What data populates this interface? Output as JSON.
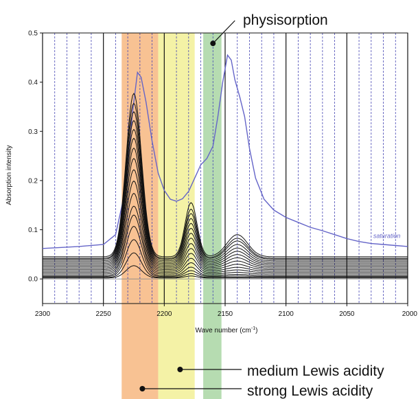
{
  "chart_data": {
    "type": "line",
    "xlabel": "Wave number (cm",
    "xlabel_sup": "-1",
    "xlabel_close": ")",
    "ylabel": "Absorption intensity",
    "xlim": [
      2300,
      2000
    ],
    "ylim": [
      -0.05,
      0.5
    ],
    "x_reversed": true,
    "x_ticks": [
      2300,
      2250,
      2200,
      2150,
      2100,
      2050,
      2000
    ],
    "y_ticks": [
      0.0,
      0.1,
      0.2,
      0.3,
      0.4,
      0.5
    ],
    "y_tick_labels": [
      "0.0",
      "0.1",
      "0.2",
      "0.3",
      "0.4",
      "0.5"
    ],
    "grid": true,
    "bands": [
      {
        "from": 2235,
        "to": 2205,
        "color": "#f7b780"
      },
      {
        "from": 2205,
        "to": 2175,
        "color": "#f2f096"
      },
      {
        "from": 2168,
        "to": 2153,
        "color": "#a9d6a3"
      }
    ],
    "annotations": [
      {
        "text": "physisorption",
        "x": 2160,
        "y": 0.49
      },
      {
        "text": "medium Lewis acidity",
        "x": 2187
      },
      {
        "text": "strong Lewis acidity",
        "x": 2218
      }
    ],
    "series": [
      {
        "name": "saturation",
        "color": "#6464c8",
        "points": [
          [
            2300,
            0.062
          ],
          [
            2270,
            0.066
          ],
          [
            2250,
            0.07
          ],
          [
            2240,
            0.09
          ],
          [
            2232,
            0.18
          ],
          [
            2226,
            0.34
          ],
          [
            2222,
            0.42
          ],
          [
            2219,
            0.41
          ],
          [
            2215,
            0.36
          ],
          [
            2210,
            0.28
          ],
          [
            2205,
            0.215
          ],
          [
            2200,
            0.18
          ],
          [
            2195,
            0.162
          ],
          [
            2190,
            0.158
          ],
          [
            2185,
            0.163
          ],
          [
            2180,
            0.178
          ],
          [
            2175,
            0.205
          ],
          [
            2170,
            0.232
          ],
          [
            2165,
            0.245
          ],
          [
            2160,
            0.27
          ],
          [
            2156,
            0.33
          ],
          [
            2152,
            0.4
          ],
          [
            2148,
            0.455
          ],
          [
            2145,
            0.445
          ],
          [
            2142,
            0.405
          ],
          [
            2138,
            0.37
          ],
          [
            2134,
            0.33
          ],
          [
            2130,
            0.265
          ],
          [
            2125,
            0.205
          ],
          [
            2118,
            0.162
          ],
          [
            2110,
            0.14
          ],
          [
            2100,
            0.125
          ],
          [
            2090,
            0.115
          ],
          [
            2080,
            0.105
          ],
          [
            2070,
            0.098
          ],
          [
            2060,
            0.09
          ],
          [
            2050,
            0.082
          ],
          [
            2040,
            0.076
          ],
          [
            2030,
            0.072
          ],
          [
            2020,
            0.07
          ],
          [
            2010,
            0.068
          ],
          [
            2000,
            0.066
          ]
        ]
      },
      {
        "name": "",
        "color": "#111111",
        "peak": 0.332,
        "baseline": 0.045,
        "side": 0.11,
        "physi": 0.075
      },
      {
        "name": "",
        "color": "#111111",
        "peak": 0.315,
        "baseline": 0.042,
        "side": 0.1,
        "physi": 0.068
      },
      {
        "name": "",
        "color": "#111111",
        "peak": 0.3,
        "baseline": 0.04,
        "side": 0.093,
        "physi": 0.062
      },
      {
        "name": "",
        "color": "#111111",
        "peak": 0.285,
        "baseline": 0.037,
        "side": 0.086,
        "physi": 0.055
      },
      {
        "name": "",
        "color": "#111111",
        "peak": 0.27,
        "baseline": 0.034,
        "side": 0.079,
        "physi": 0.048
      },
      {
        "name": "",
        "color": "#111111",
        "peak": 0.255,
        "baseline": 0.031,
        "side": 0.072,
        "physi": 0.042
      },
      {
        "name": "",
        "color": "#111111",
        "peak": 0.238,
        "baseline": 0.028,
        "side": 0.065,
        "physi": 0.036
      },
      {
        "name": "",
        "color": "#111111",
        "peak": 0.22,
        "baseline": 0.025,
        "side": 0.058,
        "physi": 0.03
      },
      {
        "name": "",
        "color": "#111111",
        "peak": 0.2,
        "baseline": 0.022,
        "side": 0.05,
        "physi": 0.024
      },
      {
        "name": "",
        "color": "#111111",
        "peak": 0.18,
        "baseline": 0.019,
        "side": 0.043,
        "physi": 0.018
      },
      {
        "name": "",
        "color": "#111111",
        "peak": 0.158,
        "baseline": 0.016,
        "side": 0.036,
        "physi": 0.013
      },
      {
        "name": "",
        "color": "#111111",
        "peak": 0.135,
        "baseline": 0.013,
        "side": 0.029,
        "physi": 0.009
      },
      {
        "name": "",
        "color": "#111111",
        "peak": 0.12,
        "baseline": 0.01,
        "side": 0.023,
        "physi": 0.006
      },
      {
        "name": "",
        "color": "#111111",
        "peak": 0.1,
        "baseline": 0.007,
        "side": 0.017,
        "physi": 0.004
      },
      {
        "name": "",
        "color": "#111111",
        "peak": 0.075,
        "baseline": 0.005,
        "side": 0.012,
        "physi": 0.002
      },
      {
        "name": "",
        "color": "#111111",
        "peak": 0.05,
        "baseline": 0.003,
        "side": 0.008,
        "physi": 0.001
      },
      {
        "name": "",
        "color": "#111111",
        "peak": 0.025,
        "baseline": 0.002,
        "side": 0.004,
        "physi": 0.0
      }
    ]
  }
}
